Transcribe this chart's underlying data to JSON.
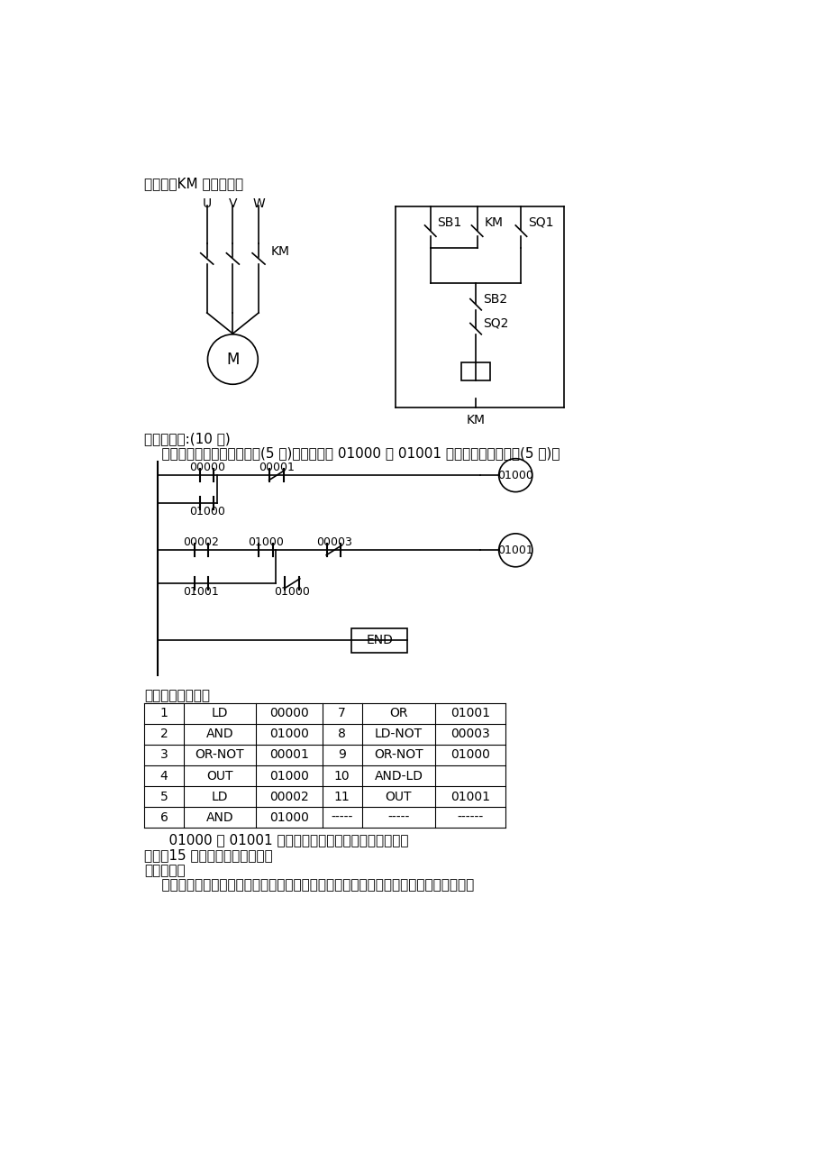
{
  "bg_color": "#ffffff",
  "text_color": "#000000",
  "title_text1": "位开关；KM 为接触器。",
  "section4_title": "四、编程题:(10 分)",
  "section4_sub": "    将下面梯形图转换成指令码(5 分)并详细说明 01000 和 01001 之间的控制逻辑关系(5 分)。",
  "answer_label": "解：程序指令码：",
  "table_data": [
    [
      "1",
      "LD",
      "00000",
      "7",
      "OR",
      "01001"
    ],
    [
      "2",
      "AND",
      "01000",
      "8",
      "LD-NOT",
      "00003"
    ],
    [
      "3",
      "OR-NOT",
      "00001",
      "9",
      "OR-NOT",
      "01000"
    ],
    [
      "4",
      "OUT",
      "01000",
      "10",
      "AND-LD",
      ""
    ],
    [
      "5",
      "LD",
      "00002",
      "11",
      "OUT",
      "01001"
    ],
    [
      "6",
      "AND",
      "01000",
      "-----",
      "-----",
      "------"
    ]
  ],
  "relation_text": "    01000 和 01001 之间为顺序启动，逆序停止的关系。",
  "section5_title": "五、（15 分）小车定位程序设计",
  "design_req": "设计要求：",
  "design_text": "    小车可在四个光电开关之间作直线运动，按下某一按鈕，小车会在与之对应的光电开关"
}
